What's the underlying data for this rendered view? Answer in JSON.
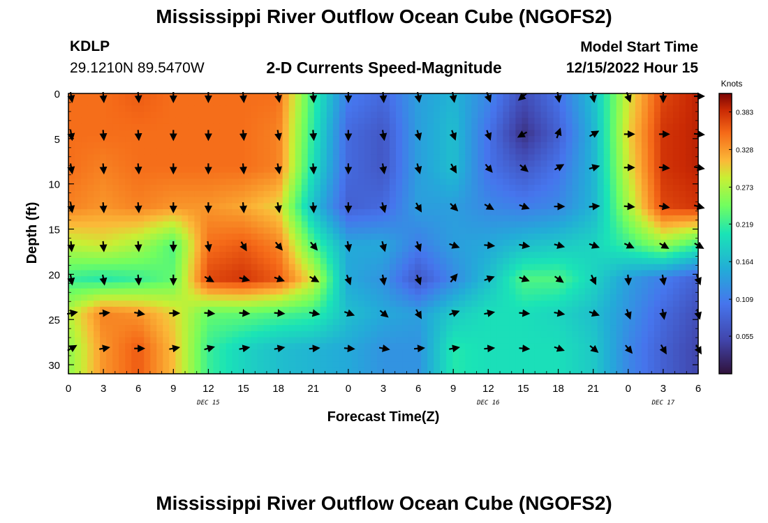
{
  "header": {
    "title": "Mississippi River Outflow Ocean Cube (NGOFS2)",
    "station": "KDLP",
    "coords": "29.1210N  89.5470W",
    "subtitle": "2-D Currents Speed-Magnitude",
    "model_start_label": "Model Start Time",
    "model_start_value": "12/15/2022 Hour 15"
  },
  "footer": {
    "title": "Mississippi River Outflow Ocean Cube (NGOFS2)"
  },
  "chart_data": {
    "type": "heatmap",
    "xlabel": "Forecast Time(Z)",
    "ylabel": "Depth (ft)",
    "x_tick_labels": [
      "0",
      "3",
      "6",
      "9",
      "12",
      "15",
      "18",
      "21",
      "0",
      "3",
      "6",
      "9",
      "12",
      "15",
      "18",
      "21",
      "0",
      "3",
      "6"
    ],
    "x_date_labels": [
      {
        "tick_index": 4,
        "label": "DEC 15"
      },
      {
        "tick_index": 12,
        "label": "DEC 16"
      },
      {
        "tick_index": 17,
        "label": "DEC 17"
      }
    ],
    "xlim_hours": [
      0,
      54
    ],
    "ylim": [
      0,
      31
    ],
    "y_ticks": [
      0,
      5,
      10,
      15,
      20,
      25,
      30
    ],
    "y_inverted": true,
    "colorbar": {
      "unit": "Knots",
      "ticks": [
        "0.383",
        "0.328",
        "0.273",
        "0.219",
        "0.164",
        "0.109",
        "0.055"
      ],
      "range": [
        0,
        0.41
      ]
    },
    "grid_hours": [
      0,
      3,
      6,
      9,
      12,
      15,
      18,
      21,
      24,
      27,
      30,
      33,
      36,
      39,
      42,
      45,
      48,
      51,
      54
    ],
    "grid_depths": [
      0,
      4.5,
      8.2,
      12.5,
      16.8,
      20.5,
      24.3,
      28.2
    ],
    "speed_knots": [
      [
        0.35,
        0.35,
        0.36,
        0.35,
        0.35,
        0.35,
        0.35,
        0.22,
        0.11,
        0.09,
        0.14,
        0.16,
        0.12,
        0.06,
        0.1,
        0.17,
        0.29,
        0.37,
        0.39
      ],
      [
        0.35,
        0.35,
        0.35,
        0.35,
        0.35,
        0.35,
        0.34,
        0.21,
        0.09,
        0.07,
        0.14,
        0.17,
        0.1,
        0.03,
        0.08,
        0.16,
        0.3,
        0.38,
        0.39
      ],
      [
        0.35,
        0.34,
        0.35,
        0.35,
        0.35,
        0.35,
        0.34,
        0.2,
        0.09,
        0.07,
        0.14,
        0.17,
        0.1,
        0.07,
        0.1,
        0.16,
        0.29,
        0.38,
        0.39
      ],
      [
        0.34,
        0.33,
        0.34,
        0.33,
        0.33,
        0.32,
        0.3,
        0.17,
        0.08,
        0.09,
        0.14,
        0.14,
        0.12,
        0.11,
        0.12,
        0.16,
        0.27,
        0.37,
        0.38
      ],
      [
        0.28,
        0.29,
        0.27,
        0.23,
        0.35,
        0.36,
        0.34,
        0.23,
        0.15,
        0.15,
        0.11,
        0.14,
        0.15,
        0.17,
        0.18,
        0.19,
        0.22,
        0.26,
        0.22
      ],
      [
        0.22,
        0.21,
        0.22,
        0.24,
        0.37,
        0.38,
        0.36,
        0.29,
        0.15,
        0.13,
        0.07,
        0.12,
        0.17,
        0.23,
        0.23,
        0.19,
        0.14,
        0.11,
        0.08
      ],
      [
        0.28,
        0.34,
        0.33,
        0.3,
        0.24,
        0.24,
        0.23,
        0.22,
        0.17,
        0.15,
        0.14,
        0.18,
        0.2,
        0.2,
        0.19,
        0.17,
        0.13,
        0.09,
        0.06
      ],
      [
        0.26,
        0.33,
        0.36,
        0.31,
        0.22,
        0.19,
        0.17,
        0.16,
        0.15,
        0.13,
        0.13,
        0.21,
        0.2,
        0.2,
        0.2,
        0.18,
        0.12,
        0.08,
        0.05
      ]
    ],
    "direction_deg": [
      [
        170,
        175,
        175,
        180,
        180,
        175,
        170,
        175,
        180,
        175,
        170,
        170,
        160,
        230,
        170,
        170,
        160,
        180,
        90
      ],
      [
        170,
        175,
        175,
        180,
        180,
        175,
        170,
        175,
        180,
        170,
        165,
        160,
        160,
        240,
        20,
        60,
        90,
        90,
        95
      ],
      [
        170,
        175,
        175,
        180,
        180,
        175,
        170,
        175,
        180,
        170,
        165,
        150,
        140,
        130,
        60,
        75,
        90,
        95,
        100
      ],
      [
        170,
        175,
        175,
        180,
        180,
        175,
        170,
        175,
        180,
        165,
        150,
        135,
        120,
        110,
        90,
        85,
        95,
        100,
        105
      ],
      [
        175,
        175,
        175,
        180,
        170,
        150,
        140,
        140,
        170,
        165,
        160,
        110,
        95,
        100,
        105,
        110,
        115,
        120,
        120
      ],
      [
        170,
        170,
        175,
        180,
        120,
        105,
        110,
        120,
        160,
        170,
        160,
        40,
        70,
        110,
        125,
        155,
        175,
        170,
        160
      ],
      [
        80,
        85,
        100,
        90,
        95,
        95,
        95,
        100,
        110,
        130,
        150,
        70,
        80,
        95,
        100,
        110,
        160,
        170,
        165
      ],
      [
        60,
        80,
        90,
        80,
        75,
        80,
        80,
        85,
        95,
        100,
        85,
        80,
        85,
        95,
        110,
        130,
        140,
        150,
        150
      ]
    ]
  }
}
